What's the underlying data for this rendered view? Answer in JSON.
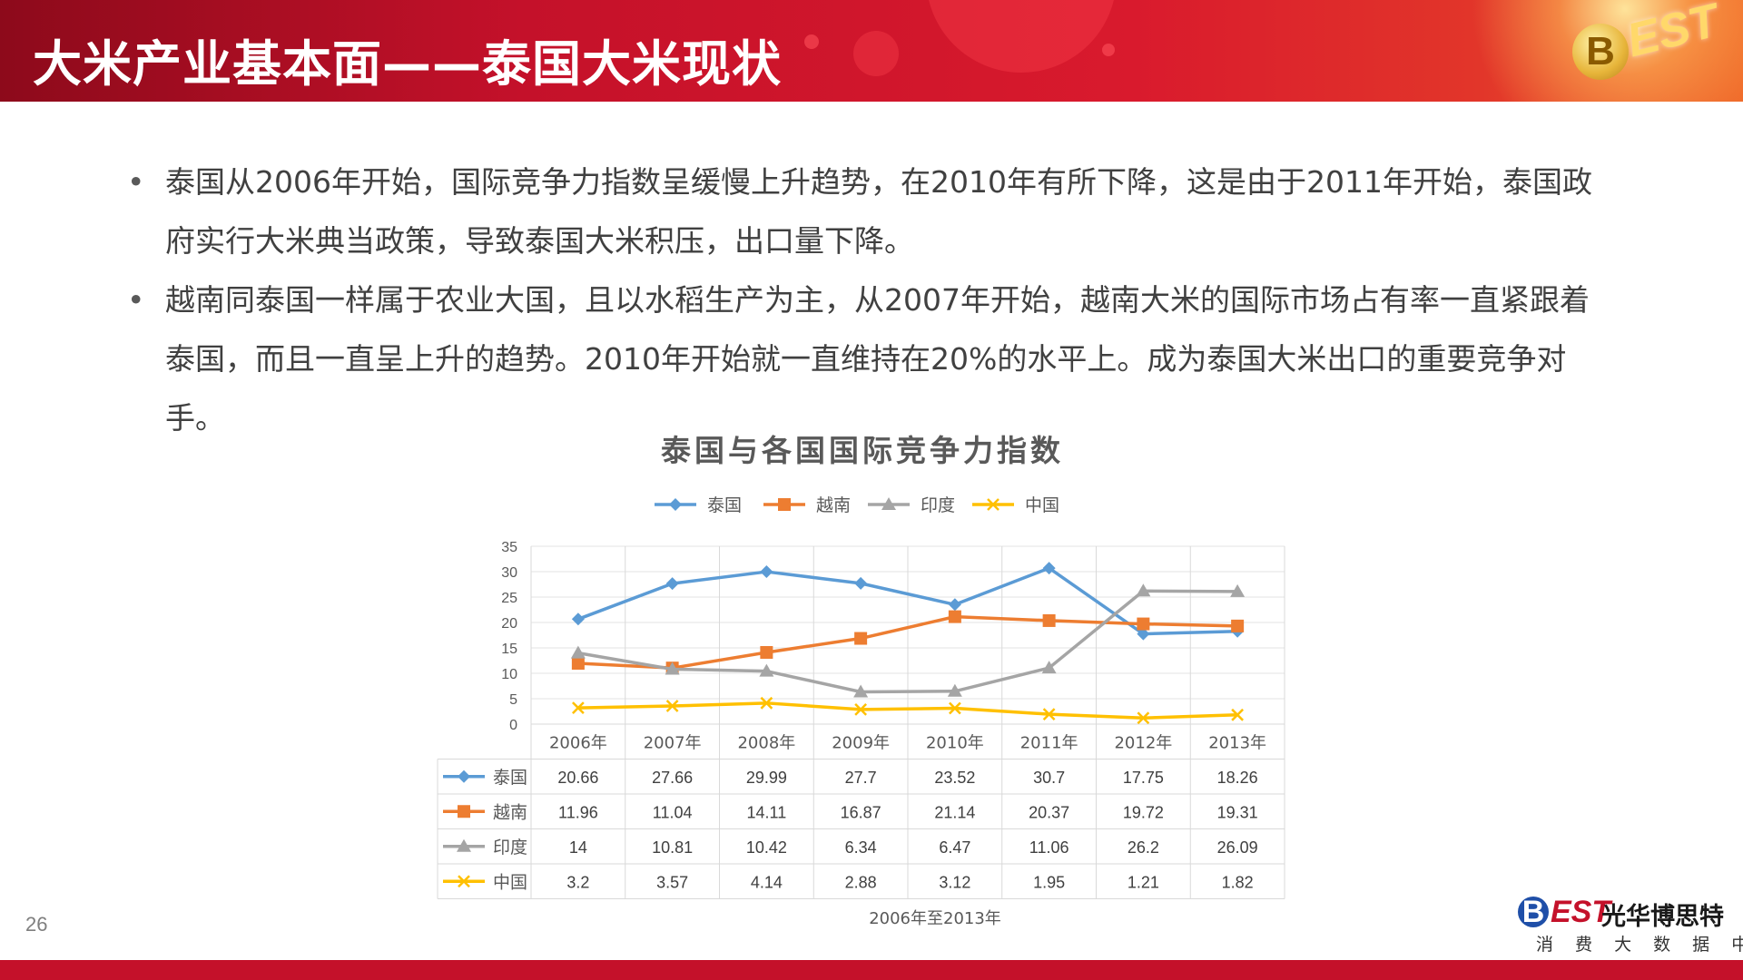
{
  "slide": {
    "title": "大米产业基本面——泰国大米现状",
    "page_number": "26",
    "brand": {
      "logo_letters": "B",
      "logo_rest": "EST",
      "name_cn": "光华博思特",
      "subtitle": "消 费 大 数 据 中 心"
    },
    "header_logo": {
      "b": "B",
      "text": "EST"
    },
    "bullets": [
      "泰国从2006年开始，国际竞争力指数呈缓慢上升趋势，在2010年有所下降，这是由于2011年开始，泰国政府实行大米典当政策，导致泰国大米积压，出口量下降。",
      "越南同泰国一样属于农业大国，且以水稻生产为主，从2007年开始，越南大米的国际市场占有率一直紧跟着泰国，而且一直呈上升的趋势。2010年开始就一直维持在20%的水平上。成为泰国大米出口的重要竞争对手。"
    ],
    "bullet_mark": "•"
  },
  "chart_data": {
    "type": "line",
    "title": "泰国与各国国际竞争力指数",
    "xlabel": "2006年至2013年",
    "ylabel": "",
    "ylim": [
      0,
      35
    ],
    "yticks": [
      0,
      5,
      10,
      15,
      20,
      25,
      30,
      35
    ],
    "grid": true,
    "legend_position": "top",
    "data_table": true,
    "categories": [
      "2006年",
      "2007年",
      "2008年",
      "2009年",
      "2010年",
      "2011年",
      "2012年",
      "2013年"
    ],
    "series": [
      {
        "name": "泰国",
        "color": "#5b9bd5",
        "marker": "diamond",
        "values": [
          20.66,
          27.66,
          29.99,
          27.7,
          23.52,
          30.7,
          17.75,
          18.26
        ]
      },
      {
        "name": "越南",
        "color": "#ed7d31",
        "marker": "square",
        "values": [
          11.96,
          11.04,
          14.11,
          16.87,
          21.14,
          20.37,
          19.72,
          19.31
        ]
      },
      {
        "name": "印度",
        "color": "#a5a5a5",
        "marker": "triangle",
        "values": [
          14,
          10.81,
          10.42,
          6.34,
          6.47,
          11.06,
          26.2,
          26.09
        ]
      },
      {
        "name": "中国",
        "color": "#ffc000",
        "marker": "x",
        "values": [
          3.2,
          3.57,
          4.14,
          2.88,
          3.12,
          1.95,
          1.21,
          1.82
        ]
      }
    ]
  }
}
